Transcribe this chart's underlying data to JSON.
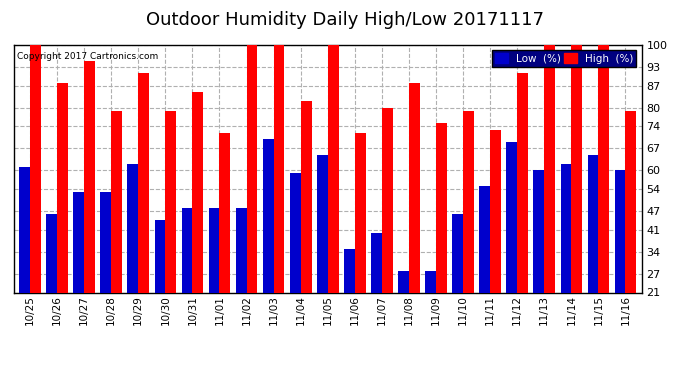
{
  "title": "Outdoor Humidity Daily High/Low 20171117",
  "copyright": "Copyright 2017 Cartronics.com",
  "categories": [
    "10/25",
    "10/26",
    "10/27",
    "10/28",
    "10/29",
    "10/30",
    "10/31",
    "11/01",
    "11/02",
    "11/03",
    "11/04",
    "11/05",
    "11/06",
    "11/07",
    "11/08",
    "11/09",
    "11/10",
    "11/11",
    "11/12",
    "11/13",
    "11/14",
    "11/15",
    "11/16"
  ],
  "high_values": [
    100,
    88,
    95,
    79,
    91,
    79,
    85,
    72,
    100,
    100,
    82,
    100,
    72,
    80,
    88,
    75,
    79,
    73,
    91,
    100,
    100,
    100,
    79
  ],
  "low_values": [
    61,
    46,
    53,
    53,
    62,
    44,
    48,
    48,
    48,
    70,
    59,
    65,
    35,
    40,
    28,
    28,
    46,
    55,
    69,
    60,
    62,
    65,
    60
  ],
  "high_color": "#ff0000",
  "low_color": "#0000cc",
  "ylim": [
    21,
    100
  ],
  "yticks": [
    21,
    27,
    34,
    41,
    47,
    54,
    60,
    67,
    74,
    80,
    87,
    93,
    100
  ],
  "background_color": "#ffffff",
  "grid_color": "#b0b0b0",
  "title_fontsize": 13,
  "legend_labels": [
    "Low  (%)",
    "High  (%)"
  ],
  "bar_width": 0.4,
  "figsize": [
    6.9,
    3.75
  ],
  "dpi": 100
}
